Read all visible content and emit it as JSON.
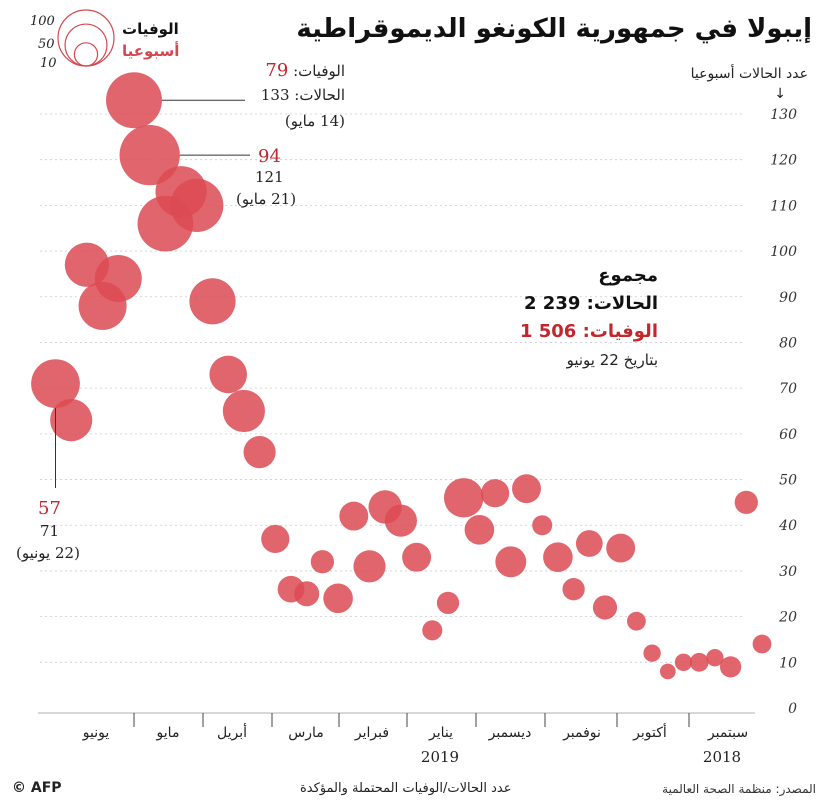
{
  "title": "إيبولا في جمهورية الكونغو الديموقراطية",
  "y_axis_label": "عدد الحالات أسبوعيا",
  "y_axis_arrow": "↓",
  "legend": {
    "deaths_label": "الوفيات",
    "weekly_label": "أسبوعيا",
    "sizes": [
      "100",
      "50",
      "10"
    ]
  },
  "totals": {
    "heading": "مجموع",
    "cases_line": "الحالات: 239 2",
    "deaths_line": "الوفيات: 506 1",
    "date_line": "بتاريخ 22 يونيو"
  },
  "annotations": {
    "a1_deaths_prefix": "الوفيات: ",
    "a1_deaths_value": "79",
    "a1_cases": "الحالات: 133",
    "a1_date": "(14 مايو)",
    "a2_deaths": "94",
    "a2_cases": "121",
    "a2_date": "(21 مايو)",
    "a3_deaths": "57",
    "a3_cases": "71",
    "a3_date": "(22 يونيو)"
  },
  "footer": {
    "source": "المصدر: منظمة الصحة العالمية",
    "note": "عدد الحالات/الوفيات المحتملة والمؤكدة",
    "logo": "© AFP"
  },
  "colors": {
    "bubble": "#dc4a52",
    "bubble_opacity": 0.85,
    "deaths_text": "#c1272d",
    "grid": "#cccccc"
  },
  "chart_data": {
    "type": "scatter",
    "title": "إيبولا في جمهورية الكونغو الديموقراطية",
    "ylabel": "عدد الحالات أسبوعيا",
    "xlabel": "",
    "ylim": [
      0,
      130
    ],
    "yticks": [
      0,
      10,
      20,
      30,
      40,
      50,
      60,
      70,
      80,
      90,
      100,
      110,
      120,
      130
    ],
    "x_direction": "right-to-left (time flows leftward)",
    "x_month_labels": [
      "سبتمبر",
      "أكتوبر",
      "نوفمبر",
      "ديسمبر",
      "يناير",
      "فبراير",
      "مارس",
      "أبريل",
      "مايو",
      "يونيو"
    ],
    "x_year_labels": [
      "2018",
      "2019"
    ],
    "bubble_size_meaning": "weekly deaths",
    "series": [
      {
        "points": [
          {
            "week": 1,
            "cases": 14,
            "deaths": 4
          },
          {
            "week": 2,
            "cases": 45,
            "deaths": 8
          },
          {
            "week": 3,
            "cases": 9,
            "deaths": 6
          },
          {
            "week": 4,
            "cases": 11,
            "deaths": 3
          },
          {
            "week": 5,
            "cases": 10,
            "deaths": 4
          },
          {
            "week": 6,
            "cases": 10,
            "deaths": 3
          },
          {
            "week": 7,
            "cases": 8,
            "deaths": 2
          },
          {
            "week": 8,
            "cases": 12,
            "deaths": 3
          },
          {
            "week": 9,
            "cases": 19,
            "deaths": 4
          },
          {
            "week": 10,
            "cases": 35,
            "deaths": 15
          },
          {
            "week": 11,
            "cases": 22,
            "deaths": 9
          },
          {
            "week": 12,
            "cases": 36,
            "deaths": 12
          },
          {
            "week": 13,
            "cases": 26,
            "deaths": 7
          },
          {
            "week": 14,
            "cases": 33,
            "deaths": 16
          },
          {
            "week": 15,
            "cases": 40,
            "deaths": 5
          },
          {
            "week": 16,
            "cases": 48,
            "deaths": 15
          },
          {
            "week": 17,
            "cases": 32,
            "deaths": 18
          },
          {
            "week": 18,
            "cases": 47,
            "deaths": 14
          },
          {
            "week": 19,
            "cases": 39,
            "deaths": 16
          },
          {
            "week": 20,
            "cases": 46,
            "deaths": 34
          },
          {
            "week": 21,
            "cases": 23,
            "deaths": 7
          },
          {
            "week": 22,
            "cases": 17,
            "deaths": 5
          },
          {
            "week": 23,
            "cases": 33,
            "deaths": 15
          },
          {
            "week": 24,
            "cases": 41,
            "deaths": 20
          },
          {
            "week": 25,
            "cases": 44,
            "deaths": 22
          },
          {
            "week": 26,
            "cases": 31,
            "deaths": 20
          },
          {
            "week": 27,
            "cases": 42,
            "deaths": 15
          },
          {
            "week": 28,
            "cases": 24,
            "deaths": 16
          },
          {
            "week": 29,
            "cases": 32,
            "deaths": 8
          },
          {
            "week": 30,
            "cases": 25,
            "deaths": 10
          },
          {
            "week": 31,
            "cases": 26,
            "deaths": 12
          },
          {
            "week": 32,
            "cases": 37,
            "deaths": 14
          },
          {
            "week": 33,
            "cases": 56,
            "deaths": 20
          },
          {
            "week": 34,
            "cases": 65,
            "deaths": 40
          },
          {
            "week": 35,
            "cases": 73,
            "deaths": 30
          },
          {
            "week": 36,
            "cases": 89,
            "deaths": 50
          },
          {
            "week": 37,
            "cases": 110,
            "deaths": 70
          },
          {
            "week": 38,
            "cases": 113,
            "deaths": 64
          },
          {
            "week": 39,
            "cases": 106,
            "deaths": 78
          },
          {
            "week": 40,
            "cases": 121,
            "deaths": 94
          },
          {
            "week": 41,
            "cases": 133,
            "deaths": 79
          },
          {
            "week": 42,
            "cases": 94,
            "deaths": 52
          },
          {
            "week": 43,
            "cases": 88,
            "deaths": 55
          },
          {
            "week": 44,
            "cases": 97,
            "deaths": 45
          },
          {
            "week": 45,
            "cases": 63,
            "deaths": 40
          },
          {
            "week": 46,
            "cases": 71,
            "deaths": 57
          }
        ]
      }
    ]
  }
}
